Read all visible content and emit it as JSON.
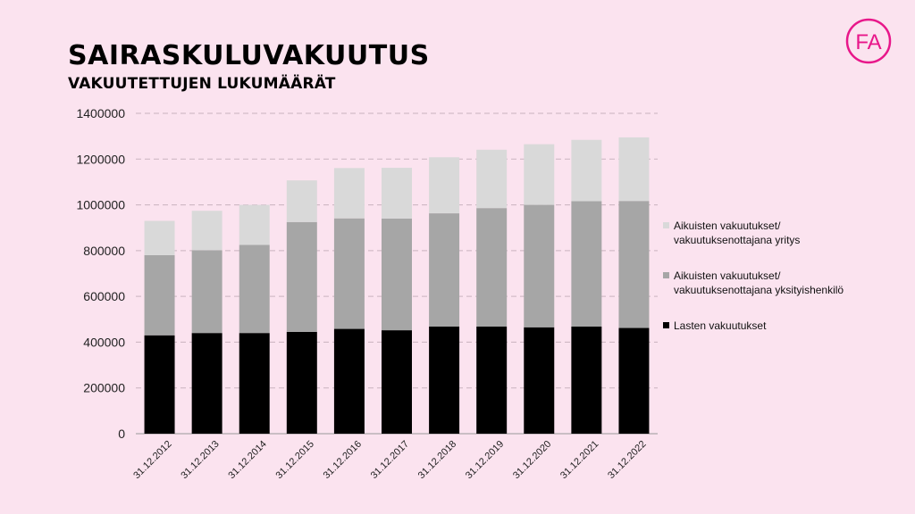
{
  "header": {
    "title": "SAIRASKULUVAKUUTUS",
    "subtitle": "VAKUUTETTUJEN LUKUMÄÄRÄT",
    "logo_text": "FA"
  },
  "colors": {
    "background": "#fbe3ef",
    "brand": "#e8178a"
  },
  "legend": [
    {
      "line1": "Aikuisten vakuutukset/",
      "line2": "vakuutuksenottajana yritys",
      "color": "#d9d9d9"
    },
    {
      "line1": "Aikuisten vakuutukset/",
      "line2": "vakuutuksenottajana yksityishenkilö",
      "color": "#a6a6a6"
    },
    {
      "line1": "Lasten vakuutukset",
      "line2": "",
      "color": "#000000"
    }
  ],
  "chart_data": {
    "type": "bar",
    "stacked": true,
    "categories": [
      "31.12.2012",
      "31.12.2013",
      "31.12.2014",
      "31.12.2015",
      "31.12.2016",
      "31.12.2017",
      "31.12.2018",
      "31.12.2019",
      "31.12.2020",
      "31.12.2021",
      "31.12.2022"
    ],
    "series": [
      {
        "name": "Lasten vakuutukset",
        "color": "#000000",
        "values": [
          430000,
          440000,
          440000,
          445000,
          458000,
          452000,
          468000,
          468000,
          465000,
          468000,
          462000
        ]
      },
      {
        "name": "Aikuisten vakuutukset/vakuutuksenottajana yksityishenkilö",
        "color": "#a6a6a6",
        "values": [
          350000,
          362000,
          385000,
          480000,
          483000,
          488000,
          495000,
          518000,
          535000,
          548000,
          555000
        ]
      },
      {
        "name": "Aikuisten vakuutukset/vakuutuksenottajana yritys",
        "color": "#d9d9d9",
        "values": [
          150000,
          172000,
          175000,
          182000,
          220000,
          222000,
          245000,
          255000,
          265000,
          268000,
          278000
        ]
      }
    ],
    "yticks": [
      "0",
      "200000",
      "400000",
      "600000",
      "800000",
      "1000000",
      "1200000",
      "1400000"
    ],
    "ylim": [
      0,
      1400000
    ],
    "grid": true,
    "legend_position": "right"
  }
}
